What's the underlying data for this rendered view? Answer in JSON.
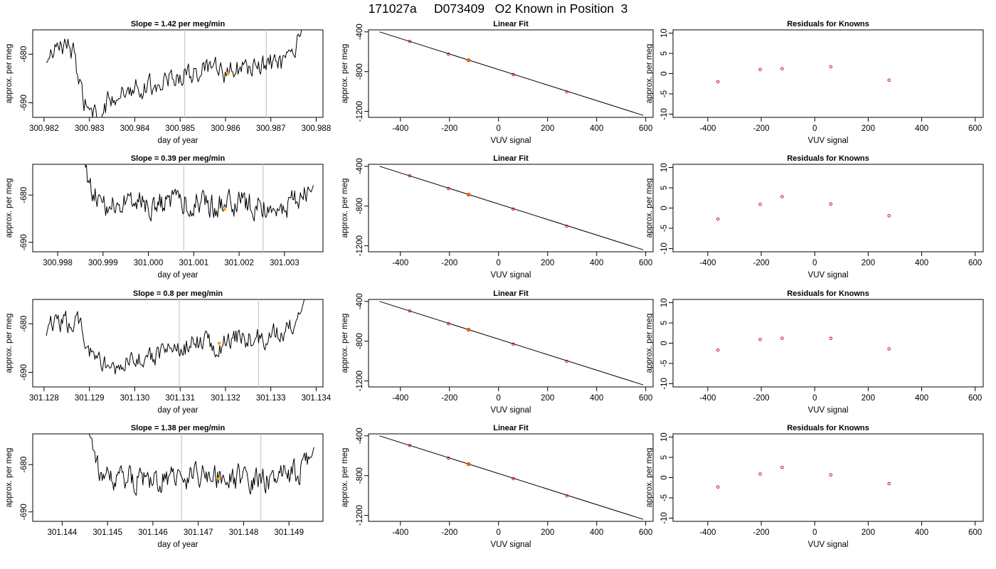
{
  "page_title": "171027a     D073409   O2 Known in Position  3",
  "colors": {
    "trace": "#000000",
    "frame": "#000000",
    "marker": "#cc0000",
    "highlight": "#ffa500",
    "vline": "#c8c8c8"
  },
  "chart_data": [
    {
      "type": "line",
      "row": 1,
      "col": 1,
      "title": "Slope =  1.42  per meg/min",
      "xlabel": "day of year",
      "ylabel": "approx. per meg",
      "xlim": [
        300.98175,
        300.98815
      ],
      "ylim": [
        -693,
        -675
      ],
      "xticks": [
        "300.982",
        "300.983",
        "300.984",
        "300.985",
        "300.986",
        "300.987",
        "300.988"
      ],
      "yticks": [
        "-680",
        "-690"
      ],
      "vlines": [
        300.9851,
        300.9869
      ],
      "highlight": {
        "x": 300.98605,
        "y": -684.0
      },
      "trace": {
        "x_start": 300.98205,
        "x_end": 300.98775,
        "waypoints": [
          [
            300.98205,
            -682
          ],
          [
            300.98215,
            -680
          ],
          [
            300.98235,
            -679
          ],
          [
            300.9825,
            -677
          ],
          [
            300.98265,
            -680
          ],
          [
            300.98275,
            -686
          ],
          [
            300.9829,
            -690
          ],
          [
            300.98305,
            -692
          ],
          [
            300.9832,
            -694
          ],
          [
            300.9834,
            -690
          ],
          [
            300.9836,
            -688
          ],
          [
            300.9838,
            -688
          ],
          [
            300.984,
            -686
          ],
          [
            300.98425,
            -687
          ],
          [
            300.9845,
            -686
          ],
          [
            300.98475,
            -685
          ],
          [
            300.985,
            -684.5
          ],
          [
            300.98525,
            -684
          ],
          [
            300.9855,
            -683.5
          ],
          [
            300.98575,
            -683
          ],
          [
            300.986,
            -684
          ],
          [
            300.98625,
            -683
          ],
          [
            300.9865,
            -683
          ],
          [
            300.98675,
            -682.5
          ],
          [
            300.987,
            -682
          ],
          [
            300.98725,
            -682
          ],
          [
            300.9875,
            -681
          ],
          [
            300.98765,
            -676
          ],
          [
            300.98775,
            -673
          ]
        ],
        "noise": 1.6
      }
    },
    {
      "type": "scatter",
      "row": 1,
      "col": 2,
      "title": "Linear Fit",
      "xlabel": "VUV signal",
      "ylabel": "approx. per meg",
      "xlim": [
        -530,
        630
      ],
      "ylim": [
        -1260,
        -380
      ],
      "xticks": [
        -400,
        -200,
        0,
        200,
        400,
        600
      ],
      "yticks": [
        -400,
        -800,
        -1200
      ],
      "fit_line": {
        "x": [
          -485,
          590
        ],
        "y": [
          -400,
          -1240
        ]
      },
      "points": [
        {
          "x": -362,
          "y": -496
        },
        {
          "x": -204,
          "y": -624
        },
        {
          "x": -122,
          "y": -685
        },
        {
          "x": 60,
          "y": -830
        },
        {
          "x": 278,
          "y": -1003
        }
      ],
      "highlight_index": 2
    },
    {
      "type": "scatter",
      "row": 1,
      "col": 3,
      "title": "Residuals for Knowns",
      "xlabel": "VUV signal",
      "ylabel": "approx. per meg",
      "xlim": [
        -530,
        630
      ],
      "ylim": [
        -10.8,
        10.8
      ],
      "xticks": [
        -400,
        -200,
        0,
        200,
        400,
        600
      ],
      "yticks": [
        10,
        5,
        0,
        -5,
        -10
      ],
      "points": [
        {
          "x": -362,
          "y": -2.0
        },
        {
          "x": -204,
          "y": 1.0
        },
        {
          "x": -122,
          "y": 1.2
        },
        {
          "x": 60,
          "y": 1.7
        },
        {
          "x": 278,
          "y": -1.6
        }
      ]
    },
    {
      "type": "line",
      "row": 2,
      "col": 1,
      "title": "Slope =  0.39  per meg/min",
      "xlabel": "day of year",
      "ylabel": "approx. per meg",
      "xlim": [
        300.99745,
        301.00385
      ],
      "ylim": [
        -692,
        -673.5
      ],
      "xticks": [
        "300.998",
        "300.999",
        "301.000",
        "301.001",
        "301.002",
        "301.003"
      ],
      "yticks": [
        "-680",
        "-690"
      ],
      "vlines": [
        301.00078,
        301.00253
      ],
      "highlight": {
        "x": 301.00168,
        "y": -683.0
      },
      "trace": {
        "x_start": 300.99855,
        "x_end": 301.00365,
        "waypoints": [
          [
            300.99855,
            -671
          ],
          [
            300.99865,
            -677
          ],
          [
            300.9988,
            -680
          ],
          [
            300.999,
            -682
          ],
          [
            300.9995,
            -682
          ],
          [
            301.0,
            -682
          ],
          [
            301.0005,
            -682
          ],
          [
            301.001,
            -681.5
          ],
          [
            301.0015,
            -682
          ],
          [
            301.002,
            -681.5
          ],
          [
            301.0025,
            -682
          ],
          [
            301.003,
            -682
          ],
          [
            301.00335,
            -681
          ],
          [
            301.00365,
            -678
          ]
        ],
        "noise": 1.9
      }
    },
    {
      "type": "scatter",
      "row": 2,
      "col": 2,
      "title": "Linear Fit",
      "xlabel": "VUV signal",
      "ylabel": "approx. per meg",
      "xlim": [
        -530,
        630
      ],
      "ylim": [
        -1260,
        -380
      ],
      "xticks": [
        -400,
        -200,
        0,
        200,
        400,
        600
      ],
      "yticks": [
        -400,
        -800,
        -1200
      ],
      "fit_line": {
        "x": [
          -485,
          590
        ],
        "y": [
          -400,
          -1240
        ]
      },
      "points": [
        {
          "x": -362,
          "y": -496
        },
        {
          "x": -204,
          "y": -624
        },
        {
          "x": -122,
          "y": -685
        },
        {
          "x": 60,
          "y": -830
        },
        {
          "x": 278,
          "y": -1003
        }
      ],
      "highlight_index": 2
    },
    {
      "type": "scatter",
      "row": 2,
      "col": 3,
      "title": "Residuals for Knowns",
      "xlabel": "VUV signal",
      "ylabel": "approx. per meg",
      "xlim": [
        -530,
        630
      ],
      "ylim": [
        -10.8,
        10.8
      ],
      "xticks": [
        -400,
        -200,
        0,
        200,
        400,
        600
      ],
      "yticks": [
        10,
        5,
        0,
        -5,
        -10
      ],
      "points": [
        {
          "x": -362,
          "y": -2.7
        },
        {
          "x": -204,
          "y": 0.9
        },
        {
          "x": -122,
          "y": 2.8
        },
        {
          "x": 60,
          "y": 1.0
        },
        {
          "x": 278,
          "y": -1.9
        }
      ]
    },
    {
      "type": "line",
      "row": 3,
      "col": 1,
      "title": "Slope =  0.8  per meg/min",
      "xlabel": "day of year",
      "ylabel": "approx. per meg",
      "xlim": [
        301.12775,
        301.13415
      ],
      "ylim": [
        -693,
        -675
      ],
      "xticks": [
        "301.128",
        "301.129",
        "301.130",
        "301.131",
        "301.132",
        "301.133",
        "301.134"
      ],
      "yticks": [
        "-680",
        "-690"
      ],
      "vlines": [
        301.13098,
        301.13273
      ],
      "highlight": {
        "x": 301.13186,
        "y": -684.0
      },
      "trace": {
        "x_start": 301.12805,
        "x_end": 301.13375,
        "waypoints": [
          [
            301.12805,
            -682
          ],
          [
            301.12815,
            -679
          ],
          [
            301.1285,
            -680
          ],
          [
            301.12875,
            -680
          ],
          [
            301.129,
            -686
          ],
          [
            301.12925,
            -688
          ],
          [
            301.1295,
            -690
          ],
          [
            301.1298,
            -688
          ],
          [
            301.1301,
            -687
          ],
          [
            301.1304,
            -687
          ],
          [
            301.1307,
            -686
          ],
          [
            301.131,
            -685
          ],
          [
            301.1313,
            -684
          ],
          [
            301.1316,
            -684
          ],
          [
            301.1319,
            -684
          ],
          [
            301.1322,
            -683
          ],
          [
            301.1325,
            -683
          ],
          [
            301.1328,
            -683
          ],
          [
            301.1331,
            -682
          ],
          [
            301.1334,
            -681
          ],
          [
            301.13365,
            -678
          ],
          [
            301.13375,
            -674
          ]
        ],
        "noise": 1.6
      }
    },
    {
      "type": "scatter",
      "row": 3,
      "col": 2,
      "title": "Linear Fit",
      "xlabel": "VUV signal",
      "ylabel": "approx. per meg",
      "xlim": [
        -530,
        630
      ],
      "ylim": [
        -1260,
        -380
      ],
      "xticks": [
        -400,
        -200,
        0,
        200,
        400,
        600
      ],
      "yticks": [
        -400,
        -800,
        -1200
      ],
      "fit_line": {
        "x": [
          -485,
          590
        ],
        "y": [
          -400,
          -1240
        ]
      },
      "points": [
        {
          "x": -362,
          "y": -496
        },
        {
          "x": -204,
          "y": -624
        },
        {
          "x": -122,
          "y": -685
        },
        {
          "x": 60,
          "y": -830
        },
        {
          "x": 278,
          "y": -1003
        }
      ],
      "highlight_index": 2
    },
    {
      "type": "scatter",
      "row": 3,
      "col": 3,
      "title": "Residuals for Knowns",
      "xlabel": "VUV signal",
      "ylabel": "approx. per meg",
      "xlim": [
        -530,
        630
      ],
      "ylim": [
        -10.8,
        10.8
      ],
      "xticks": [
        -400,
        -200,
        0,
        200,
        400,
        600
      ],
      "yticks": [
        10,
        5,
        0,
        -5,
        -10
      ],
      "points": [
        {
          "x": -362,
          "y": -1.7
        },
        {
          "x": -204,
          "y": 0.9
        },
        {
          "x": -122,
          "y": 1.2
        },
        {
          "x": 60,
          "y": 1.2
        },
        {
          "x": 278,
          "y": -1.4
        }
      ]
    },
    {
      "type": "line",
      "row": 4,
      "col": 1,
      "title": "Slope =  1.38  per meg/min",
      "xlabel": "day of year",
      "ylabel": "approx. per meg",
      "xlim": [
        301.14335,
        301.14975
      ],
      "ylim": [
        -692,
        -673.5
      ],
      "xticks": [
        "301.144",
        "301.145",
        "301.146",
        "301.147",
        "301.148",
        "301.149"
      ],
      "yticks": [
        "-680",
        "-690"
      ],
      "vlines": [
        301.14663,
        301.14838
      ],
      "highlight": {
        "x": 301.14745,
        "y": -683.0
      },
      "trace": {
        "x_start": 301.14455,
        "x_end": 301.14955,
        "waypoints": [
          [
            301.14455,
            -671
          ],
          [
            301.14465,
            -677
          ],
          [
            301.1448,
            -681
          ],
          [
            301.145,
            -683
          ],
          [
            301.1455,
            -683
          ],
          [
            301.146,
            -683
          ],
          [
            301.1465,
            -683
          ],
          [
            301.147,
            -682.5
          ],
          [
            301.1475,
            -682.5
          ],
          [
            301.148,
            -683
          ],
          [
            301.1485,
            -683
          ],
          [
            301.149,
            -682
          ],
          [
            301.14935,
            -681
          ],
          [
            301.14955,
            -677
          ]
        ],
        "noise": 1.9
      }
    },
    {
      "type": "scatter",
      "row": 4,
      "col": 2,
      "title": "Linear Fit",
      "xlabel": "VUV signal",
      "ylabel": "approx. per meg",
      "xlim": [
        -530,
        630
      ],
      "ylim": [
        -1260,
        -380
      ],
      "xticks": [
        -400,
        -200,
        0,
        200,
        400,
        600
      ],
      "yticks": [
        -400,
        -800,
        -1200
      ],
      "fit_line": {
        "x": [
          -485,
          590
        ],
        "y": [
          -400,
          -1240
        ]
      },
      "points": [
        {
          "x": -362,
          "y": -496
        },
        {
          "x": -204,
          "y": -624
        },
        {
          "x": -122,
          "y": -685
        },
        {
          "x": 60,
          "y": -830
        },
        {
          "x": 278,
          "y": -1003
        }
      ],
      "highlight_index": 2
    },
    {
      "type": "scatter",
      "row": 4,
      "col": 3,
      "title": "Residuals for Knowns",
      "xlabel": "VUV signal",
      "ylabel": "approx. per meg",
      "xlim": [
        -530,
        630
      ],
      "ylim": [
        -10.8,
        10.8
      ],
      "xticks": [
        -400,
        -200,
        0,
        200,
        400,
        600
      ],
      "yticks": [
        10,
        5,
        0,
        -5,
        -10
      ],
      "points": [
        {
          "x": -362,
          "y": -2.3
        },
        {
          "x": -204,
          "y": 0.9
        },
        {
          "x": -122,
          "y": 2.5
        },
        {
          "x": 60,
          "y": 0.7
        },
        {
          "x": 278,
          "y": -1.5
        }
      ]
    }
  ]
}
